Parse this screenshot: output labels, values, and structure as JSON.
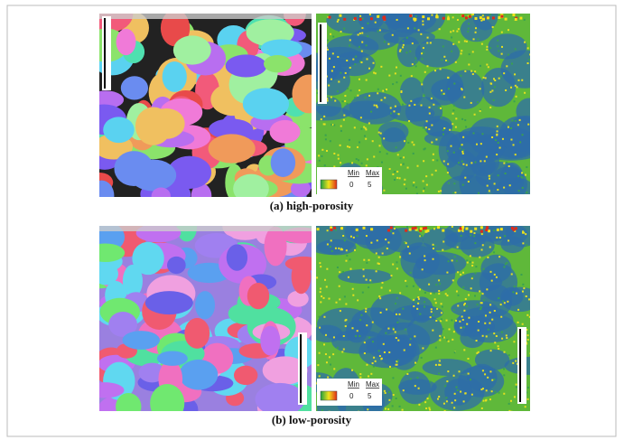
{
  "panels": [
    {
      "caption": "(a) high-porosity",
      "legend": {
        "min_label": "Min",
        "max_label": "Max",
        "min_value": "0",
        "max_value": "5"
      }
    },
    {
      "caption": "(b) low-porosity",
      "legend": {
        "min_label": "Min",
        "max_label": "Max",
        "min_value": "0",
        "max_value": "5"
      }
    }
  ]
}
